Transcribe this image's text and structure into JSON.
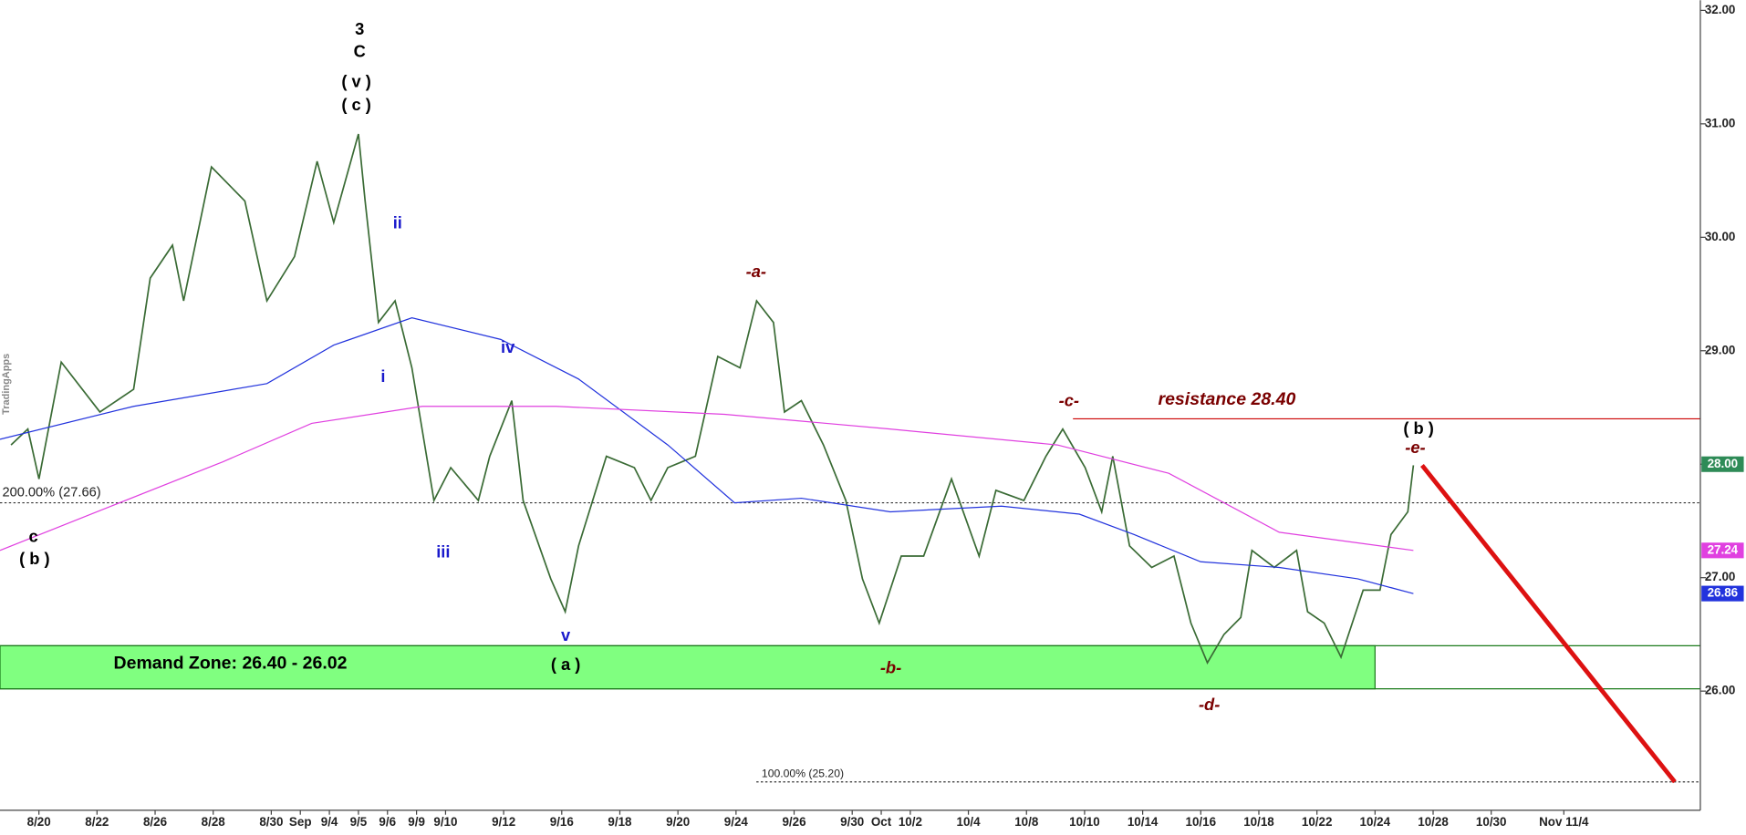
{
  "chart_data": {
    "type": "line",
    "xlim": [
      -1.34,
      57.2
    ],
    "ylim": [
      24.95,
      32.09
    ],
    "xticks": [
      {
        "value": 0,
        "label": "8/20"
      },
      {
        "value": 2,
        "label": "8/22"
      },
      {
        "value": 4,
        "label": "8/26"
      },
      {
        "value": 6,
        "label": "8/28"
      },
      {
        "value": 8,
        "label": "8/30"
      },
      {
        "value": 9,
        "label": "Sep"
      },
      {
        "value": 10,
        "label": "9/4"
      },
      {
        "value": 11,
        "label": "9/5"
      },
      {
        "value": 12,
        "label": "9/6"
      },
      {
        "value": 13,
        "label": "9/9"
      },
      {
        "value": 14,
        "label": "9/10"
      },
      {
        "value": 16,
        "label": "9/12"
      },
      {
        "value": 18,
        "label": "9/16"
      },
      {
        "value": 20,
        "label": "9/18"
      },
      {
        "value": 22,
        "label": "9/20"
      },
      {
        "value": 24,
        "label": "9/24"
      },
      {
        "value": 26,
        "label": "9/26"
      },
      {
        "value": 28,
        "label": "9/30"
      },
      {
        "value": 29,
        "label": "Oct"
      },
      {
        "value": 30,
        "label": "10/2"
      },
      {
        "value": 32,
        "label": "10/4"
      },
      {
        "value": 34,
        "label": "10/8"
      },
      {
        "value": 36,
        "label": "10/10"
      },
      {
        "value": 38,
        "label": "10/14"
      },
      {
        "value": 40,
        "label": "10/16"
      },
      {
        "value": 42,
        "label": "10/18"
      },
      {
        "value": 44,
        "label": "10/22"
      },
      {
        "value": 46,
        "label": "10/24"
      },
      {
        "value": 48,
        "label": "10/28"
      },
      {
        "value": 50,
        "label": "10/30"
      },
      {
        "value": 52.5,
        "label": "Nov 11/4"
      }
    ],
    "yticks": [
      {
        "value": 26,
        "label": "26.00"
      },
      {
        "value": 27,
        "label": "27.00"
      },
      {
        "value": 28,
        "label": "28.00"
      },
      {
        "value": 29,
        "label": "29.00"
      },
      {
        "value": 30,
        "label": "30.00"
      },
      {
        "value": 31,
        "label": "31.00"
      },
      {
        "value": 32,
        "label": "32.00"
      }
    ],
    "series": [
      {
        "name": "Price",
        "color": "#3a6b35",
        "tag": {
          "value": 28.0,
          "label": "28.00"
        },
        "tag_color": "#2e8b57",
        "x": [
          -0.96,
          -0.38,
          0,
          0.77,
          2.1,
          3.26,
          3.83,
          4.6,
          4.98,
          5.94,
          7.09,
          7.85,
          8.8,
          9.58,
          10.15,
          11.0,
          11.23,
          11.69,
          12.26,
          12.84,
          13.6,
          14.18,
          15.13,
          15.52,
          16.28,
          16.67,
          17.62,
          18.12,
          18.58,
          19.54,
          20.5,
          21.07,
          21.65,
          22.6,
          23.37,
          24.14,
          24.71,
          25.29,
          25.67,
          26.25,
          27.01,
          27.78,
          28.35,
          28.93,
          29.69,
          30.46,
          31.42,
          32.37,
          32.95,
          33.91,
          34.67,
          35.25,
          36.02,
          36.59,
          36.97,
          37.55,
          38.31,
          39.08,
          39.66,
          40.23,
          40.8,
          41.38,
          41.76,
          42.53,
          43.3,
          43.68,
          44.25,
          44.83,
          45.59,
          46.17,
          46.55,
          47.13,
          47.32
        ],
        "values": [
          28.17,
          28.31,
          27.87,
          28.9,
          28.46,
          28.66,
          29.64,
          29.93,
          29.44,
          30.62,
          30.32,
          29.44,
          29.83,
          30.67,
          30.13,
          30.91,
          30.32,
          29.25,
          29.44,
          28.85,
          27.68,
          27.97,
          27.68,
          28.07,
          28.56,
          27.68,
          26.99,
          26.7,
          27.28,
          28.07,
          27.97,
          27.68,
          27.97,
          28.07,
          28.95,
          28.85,
          29.44,
          29.25,
          28.46,
          28.56,
          28.17,
          27.68,
          26.99,
          26.6,
          27.19,
          27.19,
          27.87,
          27.19,
          27.77,
          27.68,
          28.07,
          28.31,
          27.97,
          27.58,
          28.07,
          27.28,
          27.09,
          27.19,
          26.6,
          26.25,
          26.5,
          26.65,
          27.24,
          27.09,
          27.24,
          26.7,
          26.6,
          26.3,
          26.89,
          26.89,
          27.38,
          27.58,
          27.99
        ]
      },
      {
        "name": "MA blue",
        "color": "#2233dd",
        "tag": {
          "value": 26.86,
          "label": "26.86"
        },
        "tag_color": "#2233dd",
        "x": [
          -1.34,
          3.26,
          7.85,
          10.15,
          12.84,
          15.9,
          18.58,
          21.65,
          23.95,
          26.25,
          29.31,
          33.14,
          35.82,
          37.7,
          40.0,
          42.7,
          45.4,
          47.32
        ],
        "values": [
          28.22,
          28.51,
          28.71,
          29.05,
          29.29,
          29.1,
          28.75,
          28.17,
          27.66,
          27.7,
          27.58,
          27.63,
          27.56,
          27.38,
          27.14,
          27.09,
          26.99,
          26.86
        ]
      },
      {
        "name": "MA magenta",
        "color": "#e040e0",
        "tag": {
          "value": 27.24,
          "label": "27.24"
        },
        "tag_color": "#e040e0",
        "x": [
          -1.34,
          2.49,
          6.32,
          9.39,
          13.2,
          17.8,
          23.6,
          29.3,
          35.06,
          38.9,
          42.7,
          47.32
        ],
        "values": [
          27.24,
          27.63,
          28.02,
          28.36,
          28.51,
          28.51,
          28.44,
          28.31,
          28.17,
          27.92,
          27.4,
          27.24
        ]
      }
    ],
    "zone": {
      "label": "Demand Zone: 26.40 - 26.02",
      "low": 26.02,
      "high": 26.4,
      "end": 46.0,
      "color": "#80ff80"
    },
    "levels": [
      {
        "label": "resistance 28.40",
        "value": 28.4,
        "start": 35.6,
        "color": "#cc0000",
        "style": "solid"
      },
      {
        "label": "200.00% (27.66)",
        "value": 27.66,
        "start": -1.34,
        "color": "#333333",
        "style": "dotted"
      },
      {
        "label": "100.00% (25.20)",
        "value": 25.2,
        "start": 24.7,
        "color": "#333333",
        "style": "dotted"
      }
    ],
    "projection": {
      "color": "#dd1111",
      "x": [
        47.62,
        56.32
      ],
      "values": [
        27.99,
        25.2
      ]
    },
    "annotations": [
      {
        "text": "3",
        "color": "#000000"
      },
      {
        "text": "C",
        "color": "#000000"
      },
      {
        "text": "( v )",
        "color": "#000000"
      },
      {
        "text": "( c )",
        "color": "#000000"
      },
      {
        "text": "ii",
        "color": "#1a1acc"
      },
      {
        "text": "i",
        "color": "#1a1acc"
      },
      {
        "text": "iii",
        "color": "#1a1acc"
      },
      {
        "text": "iv",
        "color": "#1a1acc"
      },
      {
        "text": "v",
        "color": "#1a1acc"
      },
      {
        "text": "( a )",
        "color": "#000000"
      },
      {
        "text": "-a-",
        "color": "#7a0000"
      },
      {
        "text": "-b-",
        "color": "#7a0000"
      },
      {
        "text": "-c-",
        "color": "#7a0000"
      },
      {
        "text": "-d-",
        "color": "#7a0000"
      },
      {
        "text": "-e-",
        "color": "#7a0000"
      },
      {
        "text": "( b )",
        "color": "#000000"
      },
      {
        "text": "c",
        "color": "#000000"
      },
      {
        "text": "( b )",
        "color": "#000000"
      },
      {
        "text": "TradingApps",
        "color": "#888888"
      }
    ]
  }
}
